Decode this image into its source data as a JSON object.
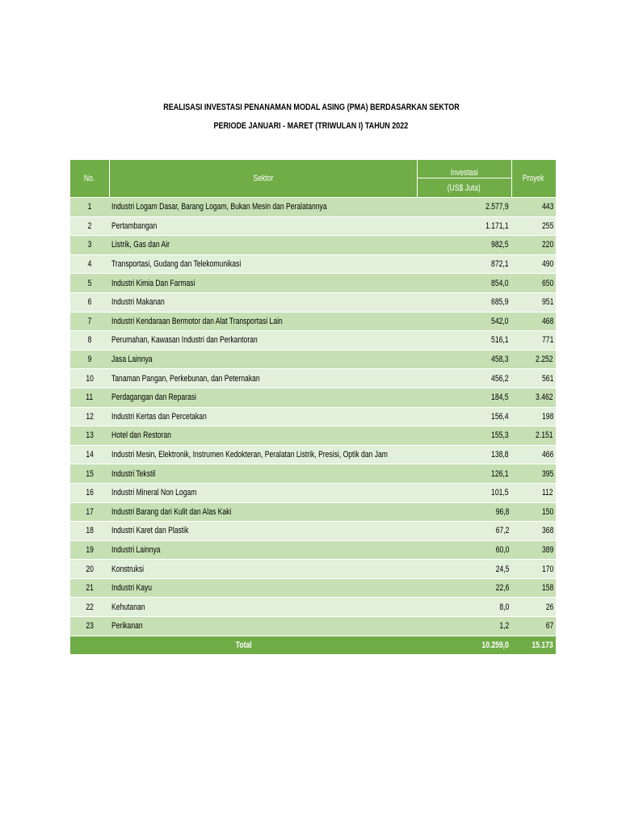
{
  "header": {
    "title": "REALISASI INVESTASI PENANAMAN MODAL ASING (PMA) BERDASARKAN SEKTOR",
    "subtitle": "PERIODE JANUARI - MARET (TRIWULAN I) TAHUN 2022"
  },
  "table": {
    "columns": [
      "No.",
      "Sektor",
      "Investasi",
      "Proyek"
    ],
    "unit": "(US$ Juta)",
    "rows": [
      [
        "1",
        "Industri Logam Dasar, Barang Logam, Bukan Mesin dan Peralatannya",
        "2.577,9",
        "443"
      ],
      [
        "2",
        "Pertambangan",
        "1.171,1",
        "255"
      ],
      [
        "3",
        "Listrik, Gas dan Air",
        "982,5",
        "220"
      ],
      [
        "4",
        "Transportasi, Gudang dan Telekomunikasi",
        "872,1",
        "490"
      ],
      [
        "5",
        "Industri Kimia Dan Farmasi",
        "854,0",
        "650"
      ],
      [
        "6",
        "Industri Makanan",
        "685,9",
        "951"
      ],
      [
        "7",
        "Industri Kendaraan Bermotor dan Alat Transportasi Lain",
        "542,0",
        "468"
      ],
      [
        "8",
        "Perumahan, Kawasan Industri dan Perkantoran",
        "516,1",
        "771"
      ],
      [
        "9",
        "Jasa Lainnya",
        "458,3",
        "2.252"
      ],
      [
        "10",
        "Tanaman Pangan, Perkebunan, dan Peternakan",
        "456,2",
        "561"
      ],
      [
        "11",
        "Perdagangan dan Reparasi",
        "184,5",
        "3.462"
      ],
      [
        "12",
        "Industri Kertas dan Percetakan",
        "156,4",
        "198"
      ],
      [
        "13",
        "Hotel dan Restoran",
        "155,3",
        "2.151"
      ],
      [
        "14",
        "Industri  Mesin, Elektronik, Instrumen Kedokteran, Peralatan Listrik, Presisi, Optik dan Jam",
        "138,8",
        "466"
      ],
      [
        "15",
        "Industri Tekstil",
        "126,1",
        "395"
      ],
      [
        "16",
        "Industri Mineral Non Logam",
        "101,5",
        "112"
      ],
      [
        "17",
        "Industri Barang dari Kulit dan Alas Kaki",
        "96,8",
        "150"
      ],
      [
        "18",
        "Industri Karet dan Plastik",
        "67,2",
        "368"
      ],
      [
        "19",
        "Industri Lainnya",
        "60,0",
        "389"
      ],
      [
        "20",
        "Konstruksi",
        "24,5",
        "170"
      ],
      [
        "21",
        "Industri Kayu",
        "22,6",
        "158"
      ],
      [
        "22",
        "Kehutanan",
        "8,0",
        "26"
      ],
      [
        "23",
        "Perikanan",
        "1,2",
        "67"
      ]
    ],
    "total": {
      "label": "Total",
      "investasi": "10.259,0",
      "proyek": "15.173"
    }
  }
}
